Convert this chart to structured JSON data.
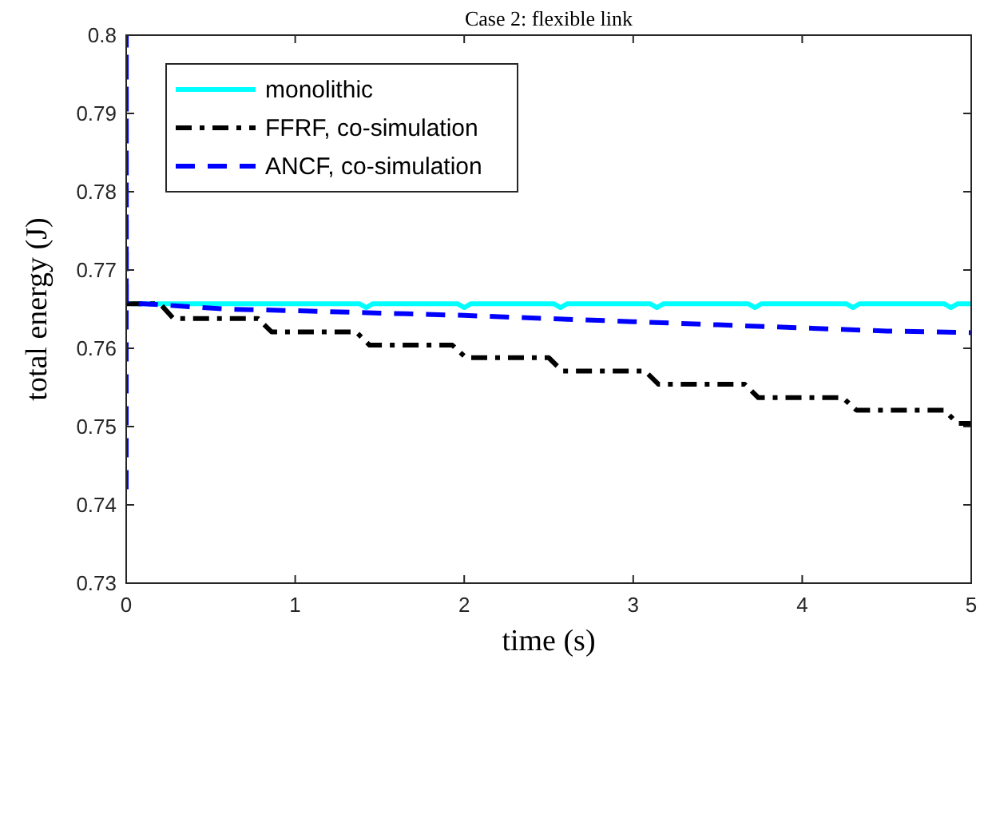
{
  "chart_data": {
    "type": "line",
    "title": "Case 2: flexible link",
    "xlabel": "time (s)",
    "ylabel": "total energy (J)",
    "xlim": [
      0,
      5
    ],
    "xticks": [
      0,
      1,
      2,
      3,
      4,
      5
    ],
    "ylim": [
      0.73,
      0.8
    ],
    "yticks": [
      0.73,
      0.74,
      0.75,
      0.76,
      0.77,
      0.78,
      0.79,
      0.8
    ],
    "legend": "top left",
    "grid": false,
    "series": [
      {
        "name": "monolithic",
        "color": "#00ffff",
        "line_style": "solid",
        "x": [
          0.03,
          1.38,
          1.42,
          1.46,
          1.96,
          2.0,
          2.04,
          2.53,
          2.57,
          2.61,
          3.1,
          3.14,
          3.18,
          3.68,
          3.72,
          3.76,
          4.26,
          4.3,
          4.34,
          4.84,
          4.88,
          4.92,
          5
        ],
        "values": [
          0.7657,
          0.7657,
          0.7652,
          0.7657,
          0.7657,
          0.7652,
          0.7657,
          0.7657,
          0.7652,
          0.7657,
          0.7657,
          0.7652,
          0.7657,
          0.7657,
          0.7652,
          0.7657,
          0.7657,
          0.7652,
          0.7657,
          0.7657,
          0.7652,
          0.7657,
          0.7657
        ]
      },
      {
        "name": "FFRF, co-simulation",
        "color": "#000000",
        "line_style": "dashdot",
        "x": [
          0,
          0.2,
          0.28,
          0.78,
          0.86,
          1.36,
          1.44,
          1.93,
          2.01,
          2.5,
          2.58,
          3.07,
          3.15,
          3.66,
          3.74,
          4.24,
          4.32,
          4.84,
          4.92,
          5
        ],
        "values": [
          0.7657,
          0.7657,
          0.7638,
          0.7638,
          0.7621,
          0.7621,
          0.7604,
          0.7604,
          0.7588,
          0.7588,
          0.7571,
          0.7571,
          0.7554,
          0.7554,
          0.7537,
          0.7537,
          0.7521,
          0.7521,
          0.7504,
          0.7504
        ]
      },
      {
        "name": "ANCF, co-simulation",
        "color": "#0000ff",
        "line_style": "dashed",
        "x": [
          0,
          0.0005,
          0.001,
          0.1,
          0.6,
          1.0,
          1.5,
          2.0,
          2.5,
          3.0,
          3.5,
          4.0,
          4.5,
          5
        ],
        "values": [
          0.742,
          0.8,
          0.7657,
          0.7657,
          0.765,
          0.7648,
          0.7645,
          0.7642,
          0.7638,
          0.7634,
          0.763,
          0.7626,
          0.7622,
          0.762
        ]
      }
    ]
  }
}
